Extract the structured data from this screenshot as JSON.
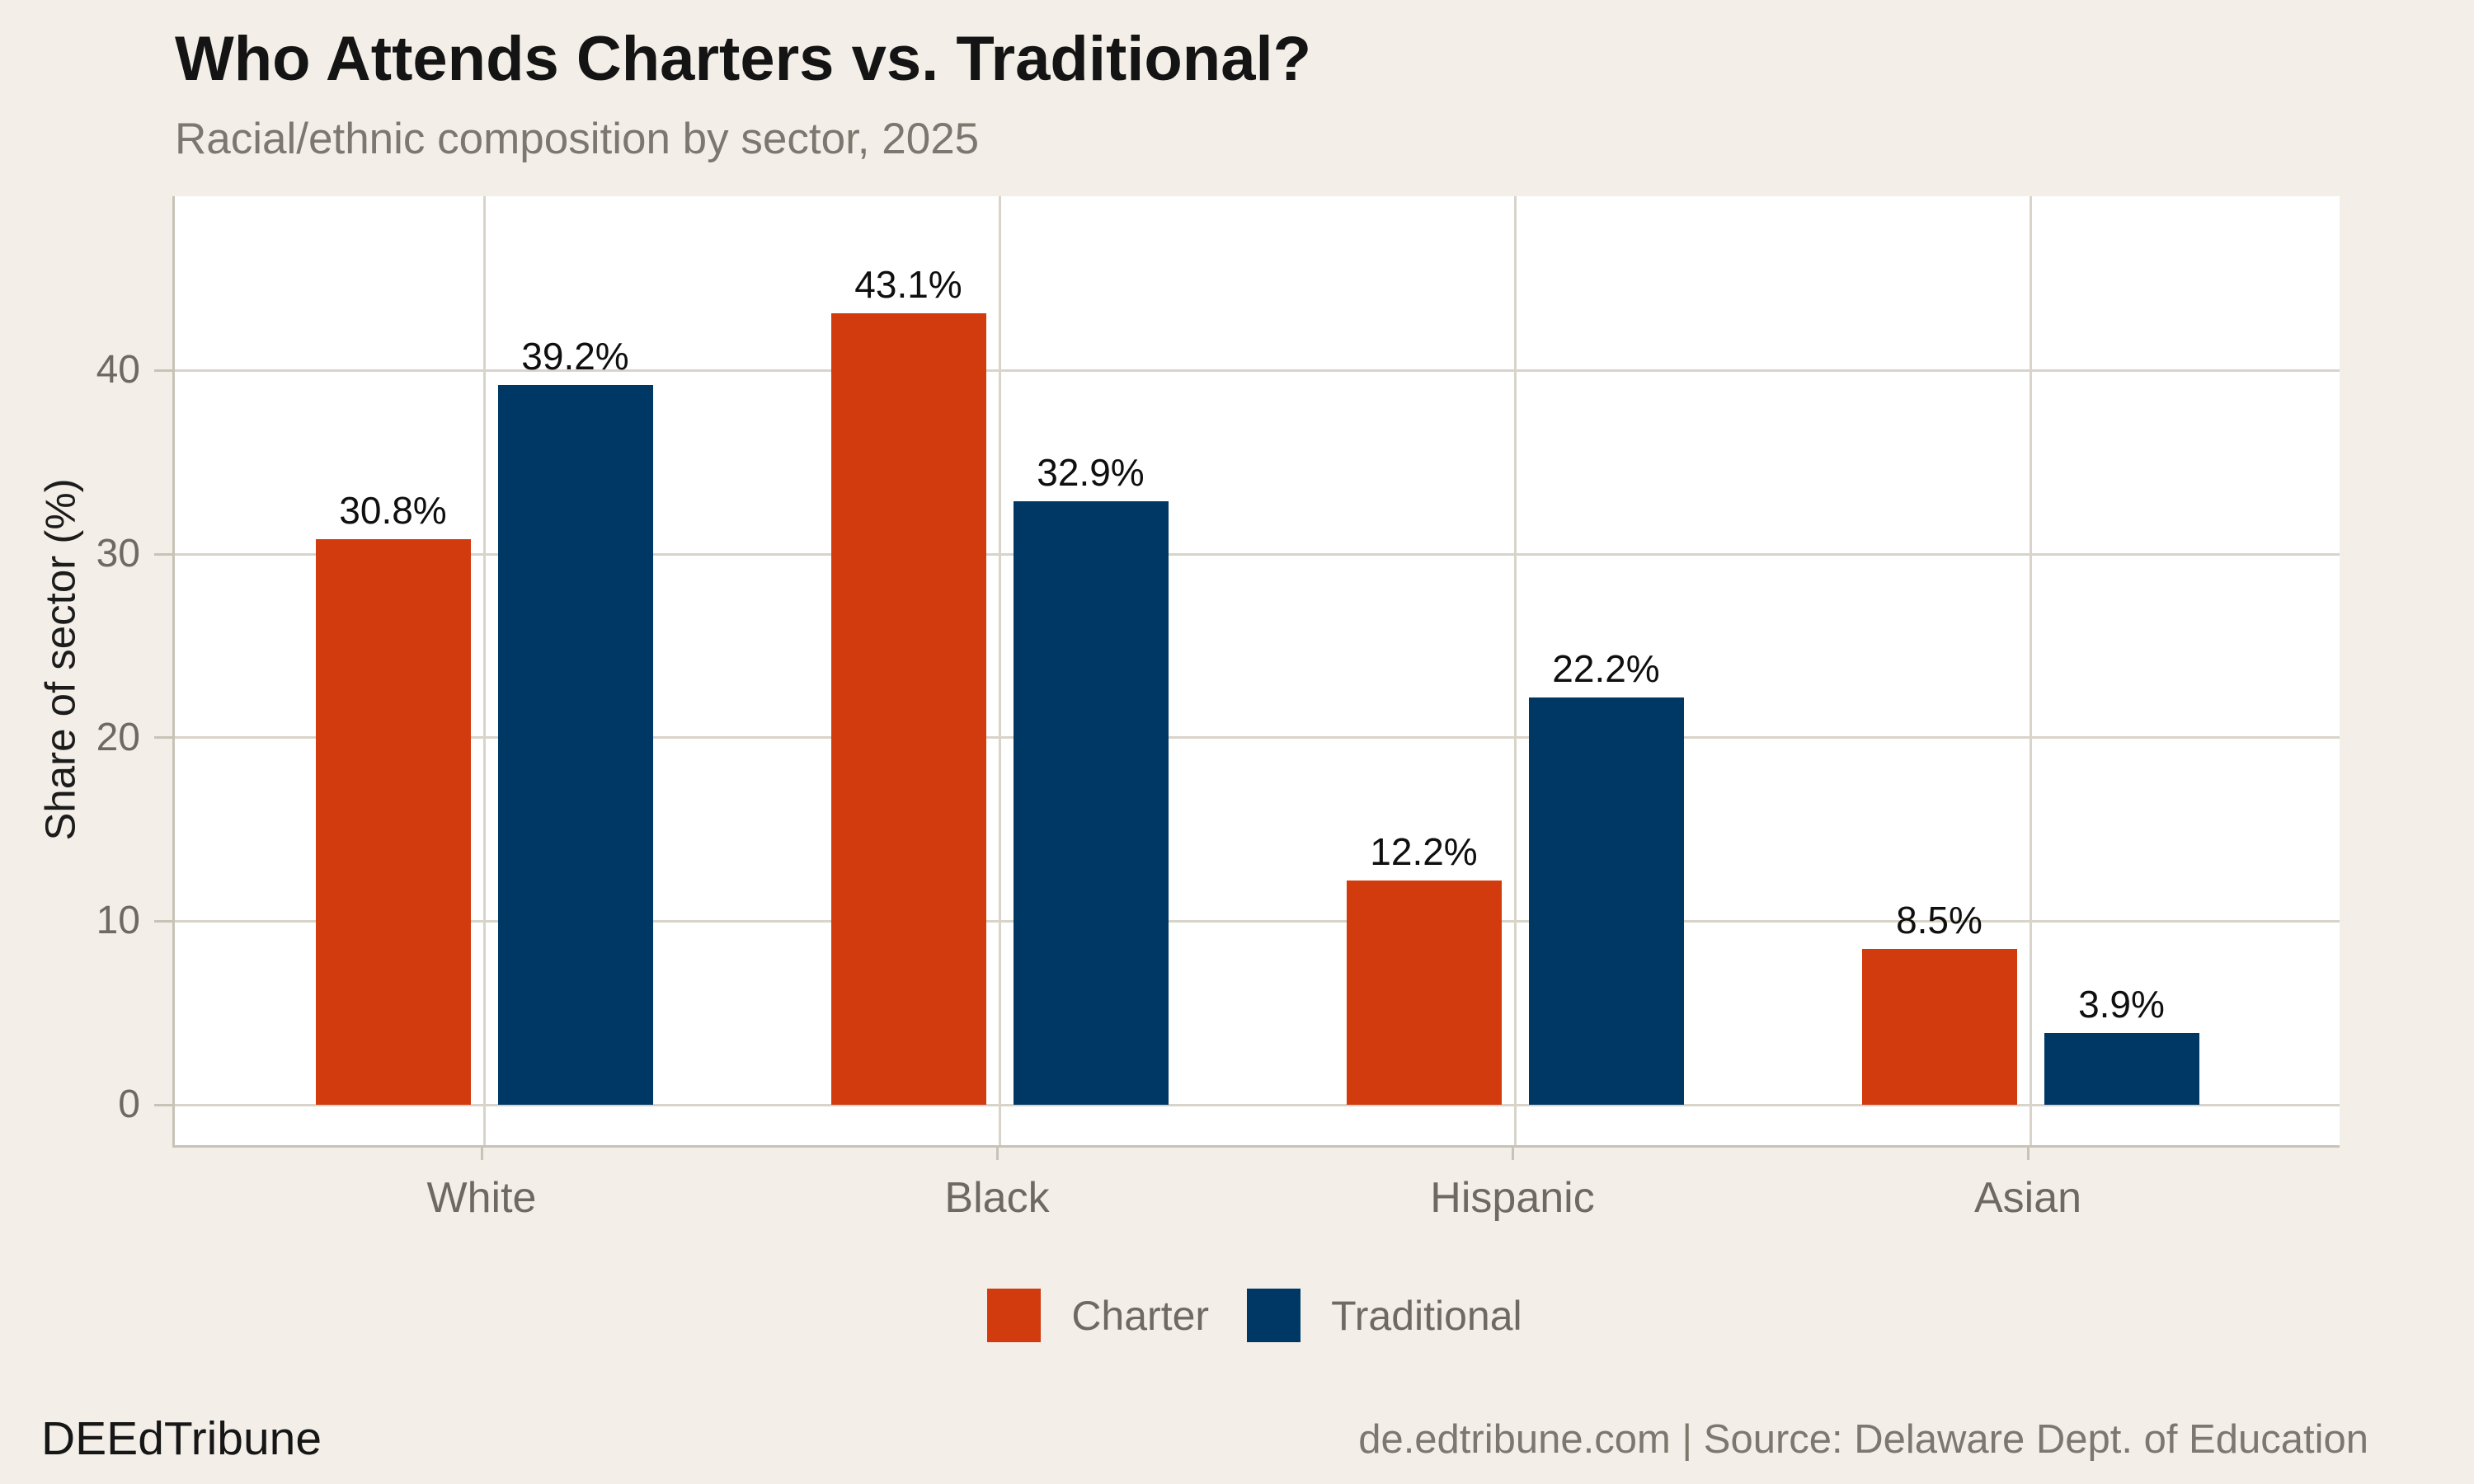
{
  "header": {
    "title": "Who Attends Charters vs. Traditional?",
    "subtitle": "Racial/ethnic composition by sector, 2025"
  },
  "chart_data": {
    "type": "bar",
    "title": "Who Attends Charters vs. Traditional?",
    "subtitle": "Racial/ethnic composition by sector, 2025",
    "categories": [
      "White",
      "Black",
      "Hispanic",
      "Asian"
    ],
    "series": [
      {
        "name": "Charter",
        "color": "#d23b0e",
        "values": [
          30.8,
          43.1,
          12.2,
          8.5
        ]
      },
      {
        "name": "Traditional",
        "color": "#003865",
        "values": [
          39.2,
          32.9,
          22.2,
          3.9
        ]
      }
    ],
    "value_labels": [
      [
        "30.8%",
        "43.1%",
        "12.2%",
        "8.5%"
      ],
      [
        "39.2%",
        "32.9%",
        "22.2%",
        "3.9%"
      ]
    ],
    "xlabel": "",
    "ylabel": "Share of sector (%)",
    "yticks": [
      0,
      10,
      20,
      30,
      40
    ],
    "ylim": [
      -2.2,
      49.5
    ],
    "grid": true,
    "legend_position": "bottom",
    "panel_background": "#ffffff",
    "page_background": "#f3efe8",
    "gridline_color": "#d9d4c9",
    "axis_color": "#c8c3b7"
  },
  "footer": {
    "brand": "DEEdTribune",
    "source": "de.edtribune.com | Source: Delaware Dept. of Education"
  }
}
